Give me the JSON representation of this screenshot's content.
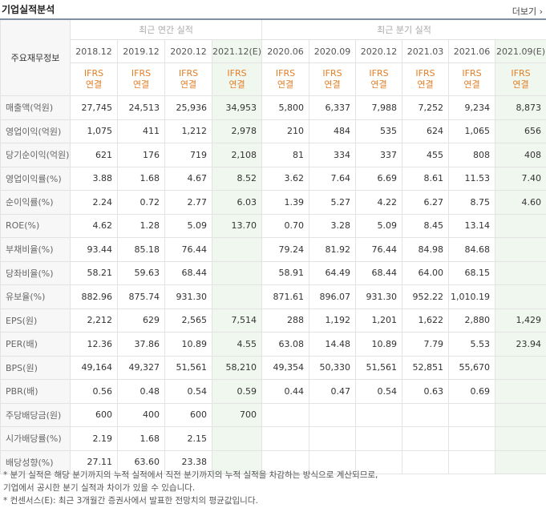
{
  "header": {
    "title": "기업실적분석",
    "more": "더보기"
  },
  "row_header_label": "주요재무정보",
  "groups": {
    "annual": "최근 연간 실적",
    "quarterly": "최근 분기 실적"
  },
  "periods": [
    "2018.12",
    "2019.12",
    "2020.12",
    "2021.12(E)",
    "2020.06",
    "2020.09",
    "2020.12",
    "2021.03",
    "2021.06",
    "2021.09(E)"
  ],
  "ifrs": [
    "IFRS",
    "연결"
  ],
  "rows": [
    {
      "label": "매출액(억원)",
      "values": [
        "27,745",
        "24,513",
        "25,936",
        "34,953",
        "5,800",
        "6,337",
        "7,988",
        "7,252",
        "9,234",
        "8,873"
      ]
    },
    {
      "label": "영업이익(억원)",
      "values": [
        "1,075",
        "411",
        "1,212",
        "2,978",
        "210",
        "484",
        "535",
        "624",
        "1,065",
        "656"
      ]
    },
    {
      "label": "당기순이익(억원)",
      "values": [
        "621",
        "176",
        "719",
        "2,108",
        "81",
        "334",
        "337",
        "455",
        "808",
        "408"
      ]
    },
    {
      "label": "영업이익률(%)",
      "values": [
        "3.88",
        "1.68",
        "4.67",
        "8.52",
        "3.62",
        "7.64",
        "6.69",
        "8.61",
        "11.53",
        "7.40"
      ]
    },
    {
      "label": "순이익률(%)",
      "values": [
        "2.24",
        "0.72",
        "2.77",
        "6.03",
        "1.39",
        "5.27",
        "4.22",
        "6.27",
        "8.75",
        "4.60"
      ]
    },
    {
      "label": "ROE(%)",
      "values": [
        "4.62",
        "1.28",
        "5.09",
        "13.70",
        "0.70",
        "3.28",
        "5.09",
        "8.45",
        "13.14",
        ""
      ]
    },
    {
      "label": "부채비율(%)",
      "values": [
        "93.44",
        "85.18",
        "76.44",
        "",
        "79.24",
        "81.92",
        "76.44",
        "84.98",
        "84.68",
        ""
      ]
    },
    {
      "label": "당좌비율(%)",
      "values": [
        "58.21",
        "59.63",
        "68.44",
        "",
        "58.91",
        "64.49",
        "68.44",
        "64.00",
        "68.15",
        ""
      ]
    },
    {
      "label": "유보율(%)",
      "values": [
        "882.96",
        "875.74",
        "931.30",
        "",
        "871.61",
        "896.07",
        "931.30",
        "952.22",
        "1,010.19",
        ""
      ]
    },
    {
      "label": "EPS(원)",
      "values": [
        "2,212",
        "629",
        "2,565",
        "7,514",
        "288",
        "1,192",
        "1,201",
        "1,622",
        "2,880",
        "1,429"
      ]
    },
    {
      "label": "PER(배)",
      "values": [
        "12.36",
        "37.86",
        "10.89",
        "4.55",
        "63.08",
        "14.48",
        "10.89",
        "7.79",
        "5.53",
        "23.94"
      ]
    },
    {
      "label": "BPS(원)",
      "values": [
        "49,164",
        "49,327",
        "51,561",
        "58,210",
        "49,354",
        "50,330",
        "51,561",
        "52,851",
        "55,670",
        ""
      ]
    },
    {
      "label": "PBR(배)",
      "values": [
        "0.56",
        "0.48",
        "0.54",
        "0.59",
        "0.44",
        "0.47",
        "0.54",
        "0.63",
        "0.69",
        ""
      ]
    },
    {
      "label": "주당배당금(원)",
      "values": [
        "600",
        "400",
        "600",
        "700",
        "",
        "",
        "",
        "",
        "",
        ""
      ]
    },
    {
      "label": "시가배당률(%)",
      "values": [
        "2.19",
        "1.68",
        "2.15",
        "",
        "",
        "",
        "",
        "",
        "",
        ""
      ]
    },
    {
      "label": "배당성향(%)",
      "values": [
        "27.11",
        "63.60",
        "23.38",
        "",
        "",
        "",
        "",
        "",
        "",
        ""
      ]
    }
  ],
  "notes": [
    "* 분기 실적은 해당 분기까지의 누적 실적에서 직전 분기까지의 누적 실적을 차감하는 방식으로 계산되므로,",
    "  기업에서 공시한 분기 실적과 차이가 있을 수 있습니다.",
    "* 컨센서스(E): 최근 3개월간 증권사에서 발표한 전망치의 평균값입니다."
  ]
}
